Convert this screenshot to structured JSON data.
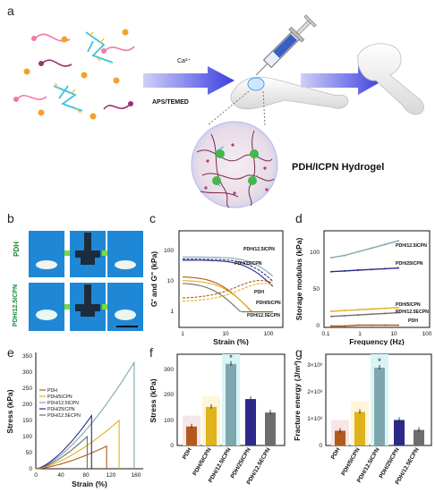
{
  "labels": {
    "a": "a",
    "b": "b",
    "c": "c",
    "d": "d",
    "e": "e",
    "f": "f",
    "g": "g"
  },
  "panel_a": {
    "ion": "Ca²⁺",
    "initiator": "APS/TEMED",
    "hydrogel": "PDH/ICPN Hydrogel"
  },
  "panel_b": {
    "row1": "PDH",
    "row2": "PDH/12.5ICPN"
  },
  "colors": {
    "PDH": "#b25a1e",
    "PDH/5ICPN": "#e0b21b",
    "PDH/12.5ICPN": "#7ea7ad",
    "PDH/25ICPN": "#2c2a88",
    "PDH/12.5ECPN": "#6d6d6d"
  },
  "chart_data": [
    {
      "id": "c",
      "type": "line",
      "xlabel": "Strain (%)",
      "ylabel": "G' and G'' (kPa)",
      "xscale": "log",
      "yscale": "log",
      "xticks": [
        "1",
        "10",
        "100"
      ],
      "yticks": [
        "1",
        "10",
        "100"
      ],
      "annotations": [
        "PDH/12.5ICPN",
        "PDH/25ICPN",
        "PDH",
        "PDH/5ICPN",
        "PDH/12.5ECPN"
      ]
    },
    {
      "id": "d",
      "type": "line",
      "xlabel": "Frequency (Hz)",
      "ylabel": "Storage modulus (kPa)",
      "xscale": "log",
      "xticks": [
        "0.1",
        "1",
        "10",
        "100"
      ],
      "yticks": [
        "0",
        "50",
        "100"
      ],
      "series": [
        {
          "name": "PDH/12.5ICPN",
          "values": [
            95,
            98,
            103,
            108,
            113,
            118
          ]
        },
        {
          "name": "PDH/25ICPN",
          "values": [
            76,
            77,
            78,
            79,
            80,
            81
          ]
        },
        {
          "name": "PDH/5ICPN",
          "values": [
            22,
            23,
            24,
            25,
            26,
            27
          ]
        },
        {
          "name": "PDH/12.5ECPN",
          "values": [
            15,
            16,
            17,
            18,
            19,
            20
          ]
        },
        {
          "name": "PDH",
          "values": [
            2,
            2,
            3,
            3,
            3,
            3
          ]
        }
      ]
    },
    {
      "id": "e",
      "type": "line",
      "xlabel": "Strain (%)",
      "ylabel": "Stress (kPa)",
      "xlim": [
        0,
        170
      ],
      "ylim": [
        0,
        360
      ],
      "xticks": [
        "0",
        "40",
        "80",
        "120",
        "160"
      ],
      "yticks": [
        "0",
        "50",
        "100",
        "150",
        "200",
        "250",
        "300",
        "350"
      ],
      "legend": [
        "PDH",
        "PDH/5ICPN",
        "PDH/12.5ICPN",
        "PDH/25ICPN",
        "PDH/12.5ECPN"
      ],
      "series": [
        {
          "name": "PDH",
          "peak": [
            113,
            70
          ]
        },
        {
          "name": "PDH/5ICPN",
          "peak": [
            133,
            150
          ]
        },
        {
          "name": "PDH/12.5ICPN",
          "peak": [
            157,
            330
          ]
        },
        {
          "name": "PDH/25ICPN",
          "peak": [
            89,
            165
          ]
        },
        {
          "name": "PDH/12.5ECPN",
          "peak": [
            82,
            100
          ]
        }
      ]
    },
    {
      "id": "f",
      "type": "bar",
      "ylabel": "Stress (kPa)",
      "ylim": [
        0,
        360
      ],
      "yticks": [
        "0",
        "100",
        "200",
        "300"
      ],
      "categories": [
        "PDH",
        "PDH/5ICPN",
        "PDH/12.5ICPN",
        "PDH/25ICPN",
        "PDH/12.5ECPN"
      ],
      "values": [
        75,
        152,
        322,
        183,
        130
      ],
      "star": "*"
    },
    {
      "id": "g",
      "type": "bar",
      "ylabel": "Fracture energy (J/m²)",
      "ylim": [
        0,
        3400
      ],
      "yticks": [
        "0",
        "1×10³",
        "2×10³",
        "3×10³"
      ],
      "categories": [
        "PDH",
        "PDH/5ICPN",
        "PDH/12.5ICPN",
        "PDH/25ICPN",
        "PDH/12.5ECPN"
      ],
      "values": [
        550,
        1250,
        2900,
        950,
        580
      ],
      "star": "*"
    }
  ]
}
